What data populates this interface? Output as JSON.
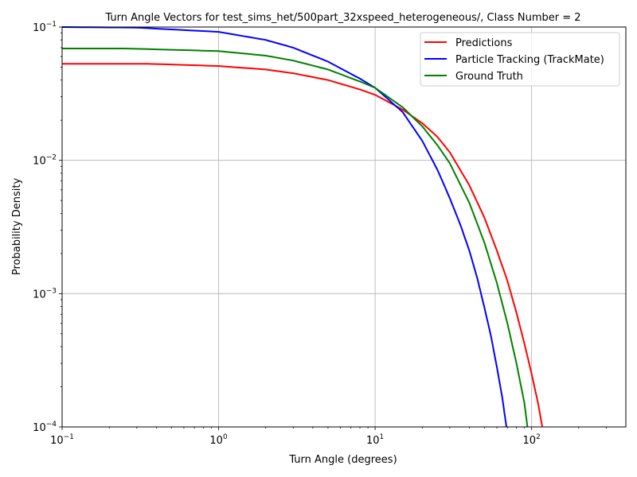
{
  "chart_data": {
    "type": "line",
    "title": "Turn Angle Vectors for test_sims_het/500part_32xspeed_heterogeneous/, Class Number = 2",
    "xlabel": "Turn Angle (degrees)",
    "ylabel": "Probability Density",
    "xscale": "log",
    "yscale": "log",
    "xlim": [
      0.1,
      400
    ],
    "ylim": [
      0.0001,
      0.1
    ],
    "grid": true,
    "legend_position": "top-right",
    "x_ticks": [
      {
        "value": 0.1,
        "base": "10",
        "exp": "−1"
      },
      {
        "value": 1,
        "base": "10",
        "exp": "0"
      },
      {
        "value": 10,
        "base": "10",
        "exp": "1"
      },
      {
        "value": 100,
        "base": "10",
        "exp": "2"
      }
    ],
    "y_ticks": [
      {
        "value": 0.0001,
        "base": "10",
        "exp": "−4"
      },
      {
        "value": 0.001,
        "base": "10",
        "exp": "−3"
      },
      {
        "value": 0.01,
        "base": "10",
        "exp": "−2"
      },
      {
        "value": 0.1,
        "base": "10",
        "exp": "−1"
      }
    ],
    "series": [
      {
        "name": "Predictions",
        "color": "#ff0000",
        "x": [
          0.1,
          0.35,
          1,
          2,
          3,
          5,
          8,
          10,
          15,
          20,
          25,
          30,
          40,
          50,
          60,
          70,
          80,
          90,
          100,
          110,
          117
        ],
        "y": [
          0.053,
          0.053,
          0.051,
          0.048,
          0.045,
          0.04,
          0.034,
          0.031,
          0.024,
          0.019,
          0.015,
          0.0115,
          0.0065,
          0.0037,
          0.0021,
          0.00125,
          0.00072,
          0.00042,
          0.00025,
          0.00015,
          0.0001
        ]
      },
      {
        "name": "Particle Tracking (TrackMate)",
        "color": "#0000ff",
        "x": [
          0.1,
          0.3,
          1,
          2,
          3,
          5,
          8,
          10,
          12,
          15,
          20,
          25,
          30,
          35,
          40,
          45,
          50,
          55,
          60,
          65,
          69
        ],
        "y": [
          0.1,
          0.099,
          0.092,
          0.08,
          0.07,
          0.055,
          0.041,
          0.035,
          0.029,
          0.023,
          0.014,
          0.0085,
          0.0052,
          0.0033,
          0.0021,
          0.0013,
          0.00078,
          0.00048,
          0.00028,
          0.000165,
          0.0001
        ]
      },
      {
        "name": "Ground Truth",
        "color": "#008000",
        "x": [
          0.1,
          0.25,
          1,
          2,
          3,
          5,
          8,
          10,
          15,
          20,
          25,
          30,
          40,
          50,
          60,
          70,
          80,
          90,
          94
        ],
        "y": [
          0.069,
          0.069,
          0.066,
          0.061,
          0.056,
          0.048,
          0.039,
          0.035,
          0.025,
          0.018,
          0.013,
          0.0095,
          0.0048,
          0.0024,
          0.0012,
          0.0006,
          0.0003,
          0.00015,
          0.0001
        ]
      }
    ]
  }
}
